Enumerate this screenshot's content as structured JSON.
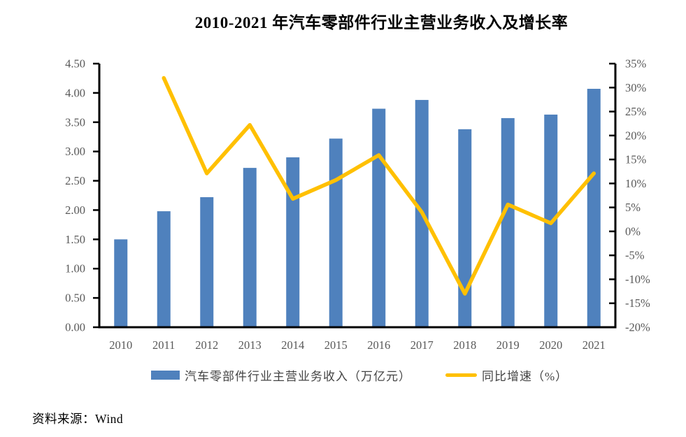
{
  "source": "资料来源：Wind",
  "chart_data": {
    "type": "combo-bar-line",
    "title": "2010-2021 年汽车零部件行业主营业务收入及增长率",
    "categories": [
      "2010",
      "2011",
      "2012",
      "2013",
      "2014",
      "2015",
      "2016",
      "2017",
      "2018",
      "2019",
      "2020",
      "2021"
    ],
    "series": [
      {
        "name": "汽车零部件行业主营业务收入（万亿元）",
        "type": "bar",
        "axis": "left",
        "color": "#4F81BD",
        "values": [
          1.5,
          1.98,
          2.22,
          2.72,
          2.9,
          3.22,
          3.73,
          3.88,
          3.38,
          3.57,
          3.63,
          4.07
        ]
      },
      {
        "name": "同比增速（%）",
        "type": "line",
        "axis": "right",
        "color": "#FFC000",
        "values": [
          null,
          32.0,
          12.1,
          22.2,
          6.8,
          10.7,
          15.9,
          4.0,
          -13.0,
          5.6,
          1.7,
          12.1
        ]
      }
    ],
    "left_axis": {
      "min": 0,
      "max": 4.5,
      "step": 0.5,
      "tick_labels": [
        "4.50",
        "4.00",
        "3.50",
        "3.00",
        "2.50",
        "2.00",
        "1.50",
        "1.00",
        "0.50",
        "0.00"
      ]
    },
    "right_axis": {
      "min": -20,
      "max": 35,
      "step": 5,
      "tick_labels": [
        "35%",
        "30%",
        "25%",
        "20%",
        "15%",
        "10%",
        "5%",
        "0%",
        "-5%",
        "-10%",
        "-15%",
        "-20%"
      ]
    },
    "axis_label_color": "#595959",
    "axis_line_color": "#000000",
    "legend_position": "bottom",
    "grid": false
  }
}
